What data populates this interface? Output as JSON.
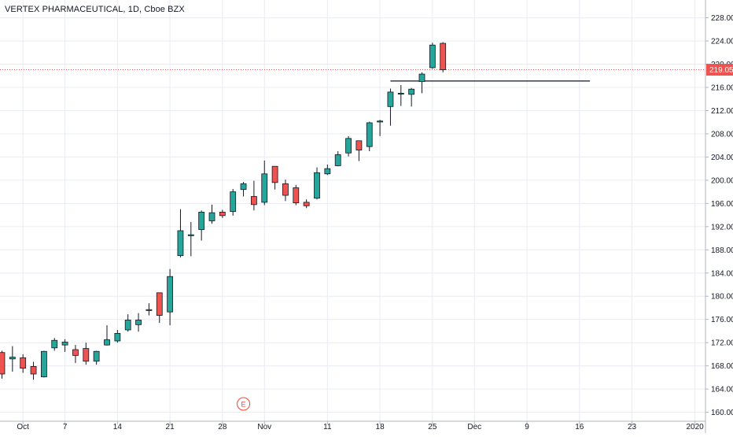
{
  "header": {
    "title": "VERTEX PHARMACEUTICAL, 1D, Cboe BZX"
  },
  "events": {
    "earnings_label": "E"
  },
  "colors": {
    "up": "#26a69a",
    "down": "#ef5350",
    "last_price_line": "#ef5350",
    "grid": "#e9ecf2",
    "text": "#131722",
    "hline": "#131722",
    "earnings": "#f44336"
  },
  "chart_data": {
    "type": "candlestick",
    "title": "VERTEX PHARMACEUTICAL, 1D, Cboe BZX",
    "ylim": [
      159.5,
      229.5
    ],
    "y_ticks": [
      160,
      164,
      168,
      172,
      176,
      180,
      184,
      188,
      192,
      196,
      200,
      204,
      208,
      212,
      216,
      220,
      224,
      228
    ],
    "x_ticks": [
      {
        "label": "Oct",
        "index": 2
      },
      {
        "label": "7",
        "index": 6
      },
      {
        "label": "14",
        "index": 11
      },
      {
        "label": "21",
        "index": 16
      },
      {
        "label": "28",
        "index": 21
      },
      {
        "label": "Nov",
        "index": 25
      },
      {
        "label": "11",
        "index": 31
      },
      {
        "label": "18",
        "index": 36
      },
      {
        "label": "25",
        "index": 41
      },
      {
        "label": "Dec",
        "index": 45
      },
      {
        "label": "9",
        "index": 50
      },
      {
        "label": "16",
        "index": 55
      },
      {
        "label": "23",
        "index": 60
      },
      {
        "label": "2020",
        "index": 66
      }
    ],
    "last_price": {
      "label": "219.05",
      "value": 219.05
    },
    "horizontal_line": {
      "value": 217.1,
      "from_index": 37,
      "to_index": 56
    },
    "earnings_index": 23,
    "candles": [
      {
        "i": 0,
        "o": 170.3,
        "h": 170.6,
        "l": 165.8,
        "c": 166.6
      },
      {
        "i": 1,
        "o": 169.2,
        "h": 171.4,
        "l": 167.0,
        "c": 169.5
      },
      {
        "i": 2,
        "o": 169.4,
        "h": 170.0,
        "l": 166.8,
        "c": 167.6
      },
      {
        "i": 3,
        "o": 167.9,
        "h": 168.7,
        "l": 165.6,
        "c": 166.6
      },
      {
        "i": 4,
        "o": 166.1,
        "h": 170.6,
        "l": 166.0,
        "c": 170.5
      },
      {
        "i": 5,
        "o": 171.1,
        "h": 172.8,
        "l": 170.6,
        "c": 172.4
      },
      {
        "i": 6,
        "o": 171.6,
        "h": 172.6,
        "l": 170.4,
        "c": 172.1
      },
      {
        "i": 7,
        "o": 170.8,
        "h": 171.6,
        "l": 168.5,
        "c": 169.8
      },
      {
        "i": 8,
        "o": 171.0,
        "h": 172.0,
        "l": 168.2,
        "c": 168.8
      },
      {
        "i": 9,
        "o": 168.8,
        "h": 170.6,
        "l": 168.2,
        "c": 170.5
      },
      {
        "i": 10,
        "o": 171.6,
        "h": 175.0,
        "l": 171.5,
        "c": 172.5
      },
      {
        "i": 11,
        "o": 172.3,
        "h": 174.2,
        "l": 172.0,
        "c": 173.6
      },
      {
        "i": 12,
        "o": 174.2,
        "h": 176.9,
        "l": 173.9,
        "c": 175.9
      },
      {
        "i": 13,
        "o": 175.1,
        "h": 177.1,
        "l": 173.9,
        "c": 175.9
      },
      {
        "i": 14,
        "o": 177.6,
        "h": 178.8,
        "l": 176.7,
        "c": 177.7
      },
      {
        "i": 15,
        "o": 180.6,
        "h": 180.6,
        "l": 175.4,
        "c": 176.7
      },
      {
        "i": 16,
        "o": 177.3,
        "h": 184.7,
        "l": 175.0,
        "c": 183.4
      },
      {
        "i": 17,
        "o": 187.0,
        "h": 195.0,
        "l": 186.7,
        "c": 191.3
      },
      {
        "i": 18,
        "o": 190.5,
        "h": 192.8,
        "l": 186.9,
        "c": 190.6
      },
      {
        "i": 19,
        "o": 191.5,
        "h": 194.8,
        "l": 189.6,
        "c": 194.5
      },
      {
        "i": 20,
        "o": 193.0,
        "h": 195.8,
        "l": 192.5,
        "c": 194.4
      },
      {
        "i": 21,
        "o": 194.5,
        "h": 194.9,
        "l": 193.5,
        "c": 193.9
      },
      {
        "i": 22,
        "o": 194.6,
        "h": 198.5,
        "l": 193.9,
        "c": 198.0
      },
      {
        "i": 23,
        "o": 198.4,
        "h": 199.7,
        "l": 197.2,
        "c": 199.4
      },
      {
        "i": 24,
        "o": 197.2,
        "h": 199.9,
        "l": 194.8,
        "c": 195.8
      },
      {
        "i": 25,
        "o": 196.2,
        "h": 203.4,
        "l": 195.7,
        "c": 201.1
      },
      {
        "i": 26,
        "o": 202.4,
        "h": 202.4,
        "l": 198.4,
        "c": 199.6
      },
      {
        "i": 27,
        "o": 199.4,
        "h": 200.1,
        "l": 196.4,
        "c": 197.4
      },
      {
        "i": 28,
        "o": 198.7,
        "h": 199.2,
        "l": 195.7,
        "c": 196.1
      },
      {
        "i": 29,
        "o": 196.2,
        "h": 196.7,
        "l": 195.2,
        "c": 195.6
      },
      {
        "i": 30,
        "o": 196.9,
        "h": 202.2,
        "l": 196.7,
        "c": 201.3
      },
      {
        "i": 31,
        "o": 201.1,
        "h": 202.7,
        "l": 200.9,
        "c": 202.0
      },
      {
        "i": 32,
        "o": 202.5,
        "h": 205.0,
        "l": 202.4,
        "c": 204.4
      },
      {
        "i": 33,
        "o": 204.7,
        "h": 207.6,
        "l": 204.1,
        "c": 207.2
      },
      {
        "i": 34,
        "o": 206.8,
        "h": 206.8,
        "l": 203.3,
        "c": 205.2
      },
      {
        "i": 35,
        "o": 205.8,
        "h": 210.1,
        "l": 205.0,
        "c": 209.9
      },
      {
        "i": 36,
        "o": 210.1,
        "h": 210.4,
        "l": 207.6,
        "c": 210.2
      },
      {
        "i": 37,
        "o": 212.7,
        "h": 215.8,
        "l": 209.4,
        "c": 215.2
      },
      {
        "i": 38,
        "o": 214.9,
        "h": 216.4,
        "l": 212.8,
        "c": 215.0
      },
      {
        "i": 39,
        "o": 214.8,
        "h": 215.9,
        "l": 212.7,
        "c": 215.7
      },
      {
        "i": 40,
        "o": 217.0,
        "h": 218.6,
        "l": 215.0,
        "c": 218.3
      },
      {
        "i": 41,
        "o": 219.4,
        "h": 223.7,
        "l": 219.2,
        "c": 223.3
      },
      {
        "i": 42,
        "o": 223.6,
        "h": 223.8,
        "l": 218.6,
        "c": 219.05
      }
    ]
  }
}
